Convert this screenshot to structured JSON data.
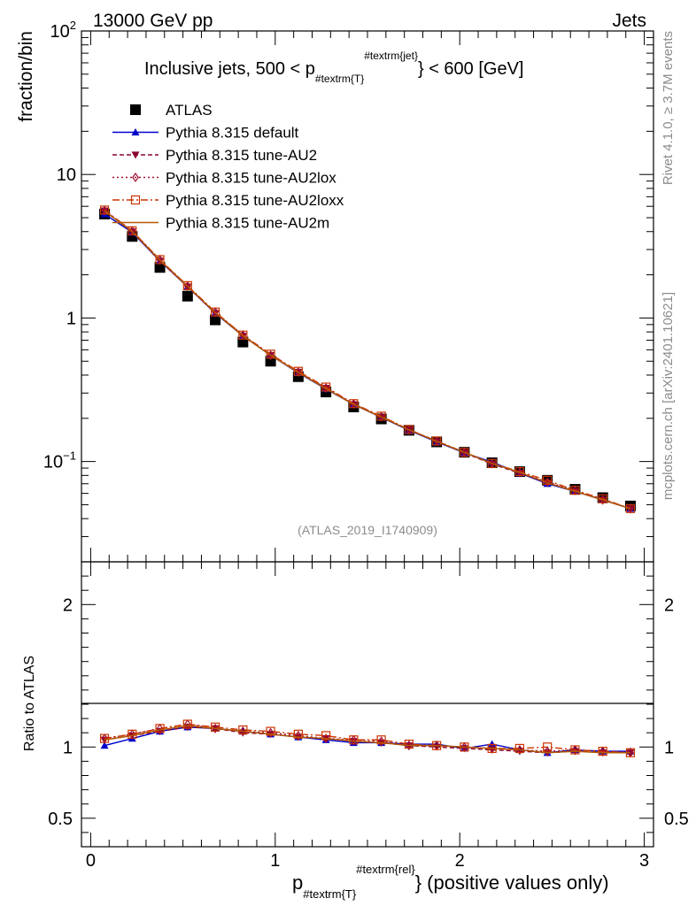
{
  "header": {
    "left_label": "13000 GeV pp",
    "right_label": "Jets"
  },
  "side_labels": {
    "rivet": "Rivet 4.1.0, ≥ 3.7M events",
    "mcplots": "mcplots.cern.ch [arXiv:2401.10621]"
  },
  "chart_data": [
    {
      "type": "line",
      "panel": "main",
      "title": "Inclusive jets, 500 < p#textrm{T}#textrm{jet} < 600 [GeV]",
      "title_parts": {
        "lead": "Inclusive jets, 500 < p",
        "sub": "#textrm{T}",
        "sup": "#textrm{jet}",
        "tail": "} < 600 [GeV]"
      },
      "ylabel": "fraction/bin",
      "yscale": "log",
      "ylim": [
        0.02,
        100
      ],
      "xlim": [
        -0.05,
        3.05
      ],
      "y_ticks": [
        {
          "value": 0.1,
          "label": "10",
          "exp": "−1"
        },
        {
          "value": 1,
          "label": "1"
        },
        {
          "value": 10,
          "label": "10"
        },
        {
          "value": 100,
          "label": "10",
          "exp": "2"
        }
      ],
      "watermark": "(ATLAS_2019_I1740909)",
      "x": [
        0.075,
        0.225,
        0.375,
        0.525,
        0.675,
        0.825,
        0.975,
        1.125,
        1.275,
        1.425,
        1.575,
        1.725,
        1.875,
        2.025,
        2.175,
        2.325,
        2.475,
        2.625,
        2.775,
        2.925
      ],
      "series": [
        {
          "name": "ATLAS",
          "color": "#000000",
          "marker": "square",
          "values": [
            5.3,
            3.7,
            2.25,
            1.42,
            0.97,
            0.68,
            0.5,
            0.39,
            0.305,
            0.24,
            0.198,
            0.165,
            0.137,
            0.116,
            0.098,
            0.085,
            0.074,
            0.064,
            0.056,
            0.049
          ]
        },
        {
          "name": "Pythia 8.315 default",
          "color": "#0000cc",
          "marker": "triangle-up",
          "dash": "solid",
          "values": [
            5.3,
            3.95,
            2.5,
            1.65,
            1.08,
            0.75,
            0.55,
            0.415,
            0.32,
            0.25,
            0.203,
            0.165,
            0.137,
            0.115,
            0.099,
            0.083,
            0.07,
            0.062,
            0.054,
            0.047
          ]
        },
        {
          "name": "Pythia 8.315 tune-AU2",
          "color": "#8b0033",
          "marker": "triangle-down",
          "dash": "5,3",
          "values": [
            5.6,
            4.0,
            2.5,
            1.65,
            1.08,
            0.75,
            0.55,
            0.42,
            0.325,
            0.25,
            0.203,
            0.167,
            0.138,
            0.115,
            0.096,
            0.083,
            0.071,
            0.062,
            0.054,
            0.047
          ]
        },
        {
          "name": "Pythia 8.315 tune-AU2lox",
          "color": "#a01030",
          "marker": "diamond",
          "dash": "2,3",
          "values": [
            5.6,
            4.05,
            2.55,
            1.67,
            1.1,
            0.76,
            0.55,
            0.42,
            0.325,
            0.252,
            0.205,
            0.166,
            0.139,
            0.116,
            0.097,
            0.084,
            0.072,
            0.063,
            0.054,
            0.047
          ]
        },
        {
          "name": "Pythia 8.315 tune-AU2loxx",
          "color": "#cc3300",
          "marker": "square-open",
          "dash": "8,3,2,3",
          "values": [
            5.65,
            4.05,
            2.55,
            1.68,
            1.1,
            0.76,
            0.56,
            0.425,
            0.33,
            0.253,
            0.207,
            0.167,
            0.139,
            0.116,
            0.097,
            0.085,
            0.074,
            0.063,
            0.055,
            0.047
          ]
        },
        {
          "name": "Pythia 8.315 tune-AU2m",
          "color": "#b35900",
          "marker": "none",
          "dash": "solid",
          "values": [
            5.55,
            4.0,
            2.53,
            1.66,
            1.09,
            0.75,
            0.55,
            0.418,
            0.322,
            0.25,
            0.204,
            0.166,
            0.138,
            0.116,
            0.097,
            0.084,
            0.071,
            0.062,
            0.054,
            0.047
          ]
        }
      ]
    },
    {
      "type": "line",
      "panel": "ratio",
      "ylabel": "Ratio to ATLAS",
      "ylim": [
        0.3,
        2.3
      ],
      "y_tick_labels": [
        "0.5",
        "1",
        "2"
      ],
      "y_tick_values": [
        0.5,
        1,
        2
      ],
      "xlim": [
        -0.05,
        3.05
      ],
      "x_ticks": [
        0,
        1,
        2,
        3
      ],
      "x_tick_labels": [
        "0",
        "1",
        "2",
        "3"
      ],
      "xlabel": "p#textrm{T}#textrm{rel}} (positive values only)",
      "xlabel_parts": {
        "lead": "p",
        "sub": "#textrm{T}",
        "sup": "#textrm{rel}",
        "tail": "} (positive values only)"
      },
      "series": [
        {
          "name": "Pythia 8.315 default",
          "values": [
            1.01,
            1.06,
            1.11,
            1.14,
            1.13,
            1.11,
            1.09,
            1.07,
            1.05,
            1.03,
            1.03,
            1.02,
            1.02,
            0.99,
            1.02,
            0.98,
            0.96,
            0.98,
            0.97,
            0.97
          ]
        },
        {
          "name": "Pythia 8.315 tune-AU2",
          "values": [
            1.05,
            1.08,
            1.11,
            1.14,
            1.13,
            1.1,
            1.09,
            1.07,
            1.06,
            1.04,
            1.03,
            1.01,
            1.0,
            0.99,
            0.98,
            0.97,
            0.96,
            0.97,
            0.96,
            0.96
          ]
        },
        {
          "name": "Pythia 8.315 tune-AU2lox",
          "values": [
            1.06,
            1.09,
            1.13,
            1.16,
            1.13,
            1.11,
            1.1,
            1.08,
            1.06,
            1.05,
            1.04,
            1.01,
            1.01,
            1.0,
            0.99,
            0.98,
            0.97,
            0.98,
            0.97,
            0.96
          ]
        },
        {
          "name": "Pythia 8.315 tune-AU2loxx",
          "values": [
            1.06,
            1.09,
            1.13,
            1.16,
            1.14,
            1.12,
            1.11,
            1.09,
            1.08,
            1.05,
            1.05,
            1.02,
            1.01,
            1.0,
            0.99,
            0.99,
            1.0,
            0.98,
            0.97,
            0.96
          ]
        },
        {
          "name": "Pythia 8.315 tune-AU2m",
          "values": [
            1.05,
            1.08,
            1.12,
            1.15,
            1.13,
            1.11,
            1.09,
            1.07,
            1.06,
            1.04,
            1.03,
            1.01,
            1.01,
            1.0,
            0.99,
            0.98,
            0.96,
            0.97,
            0.96,
            0.96
          ]
        }
      ]
    }
  ]
}
